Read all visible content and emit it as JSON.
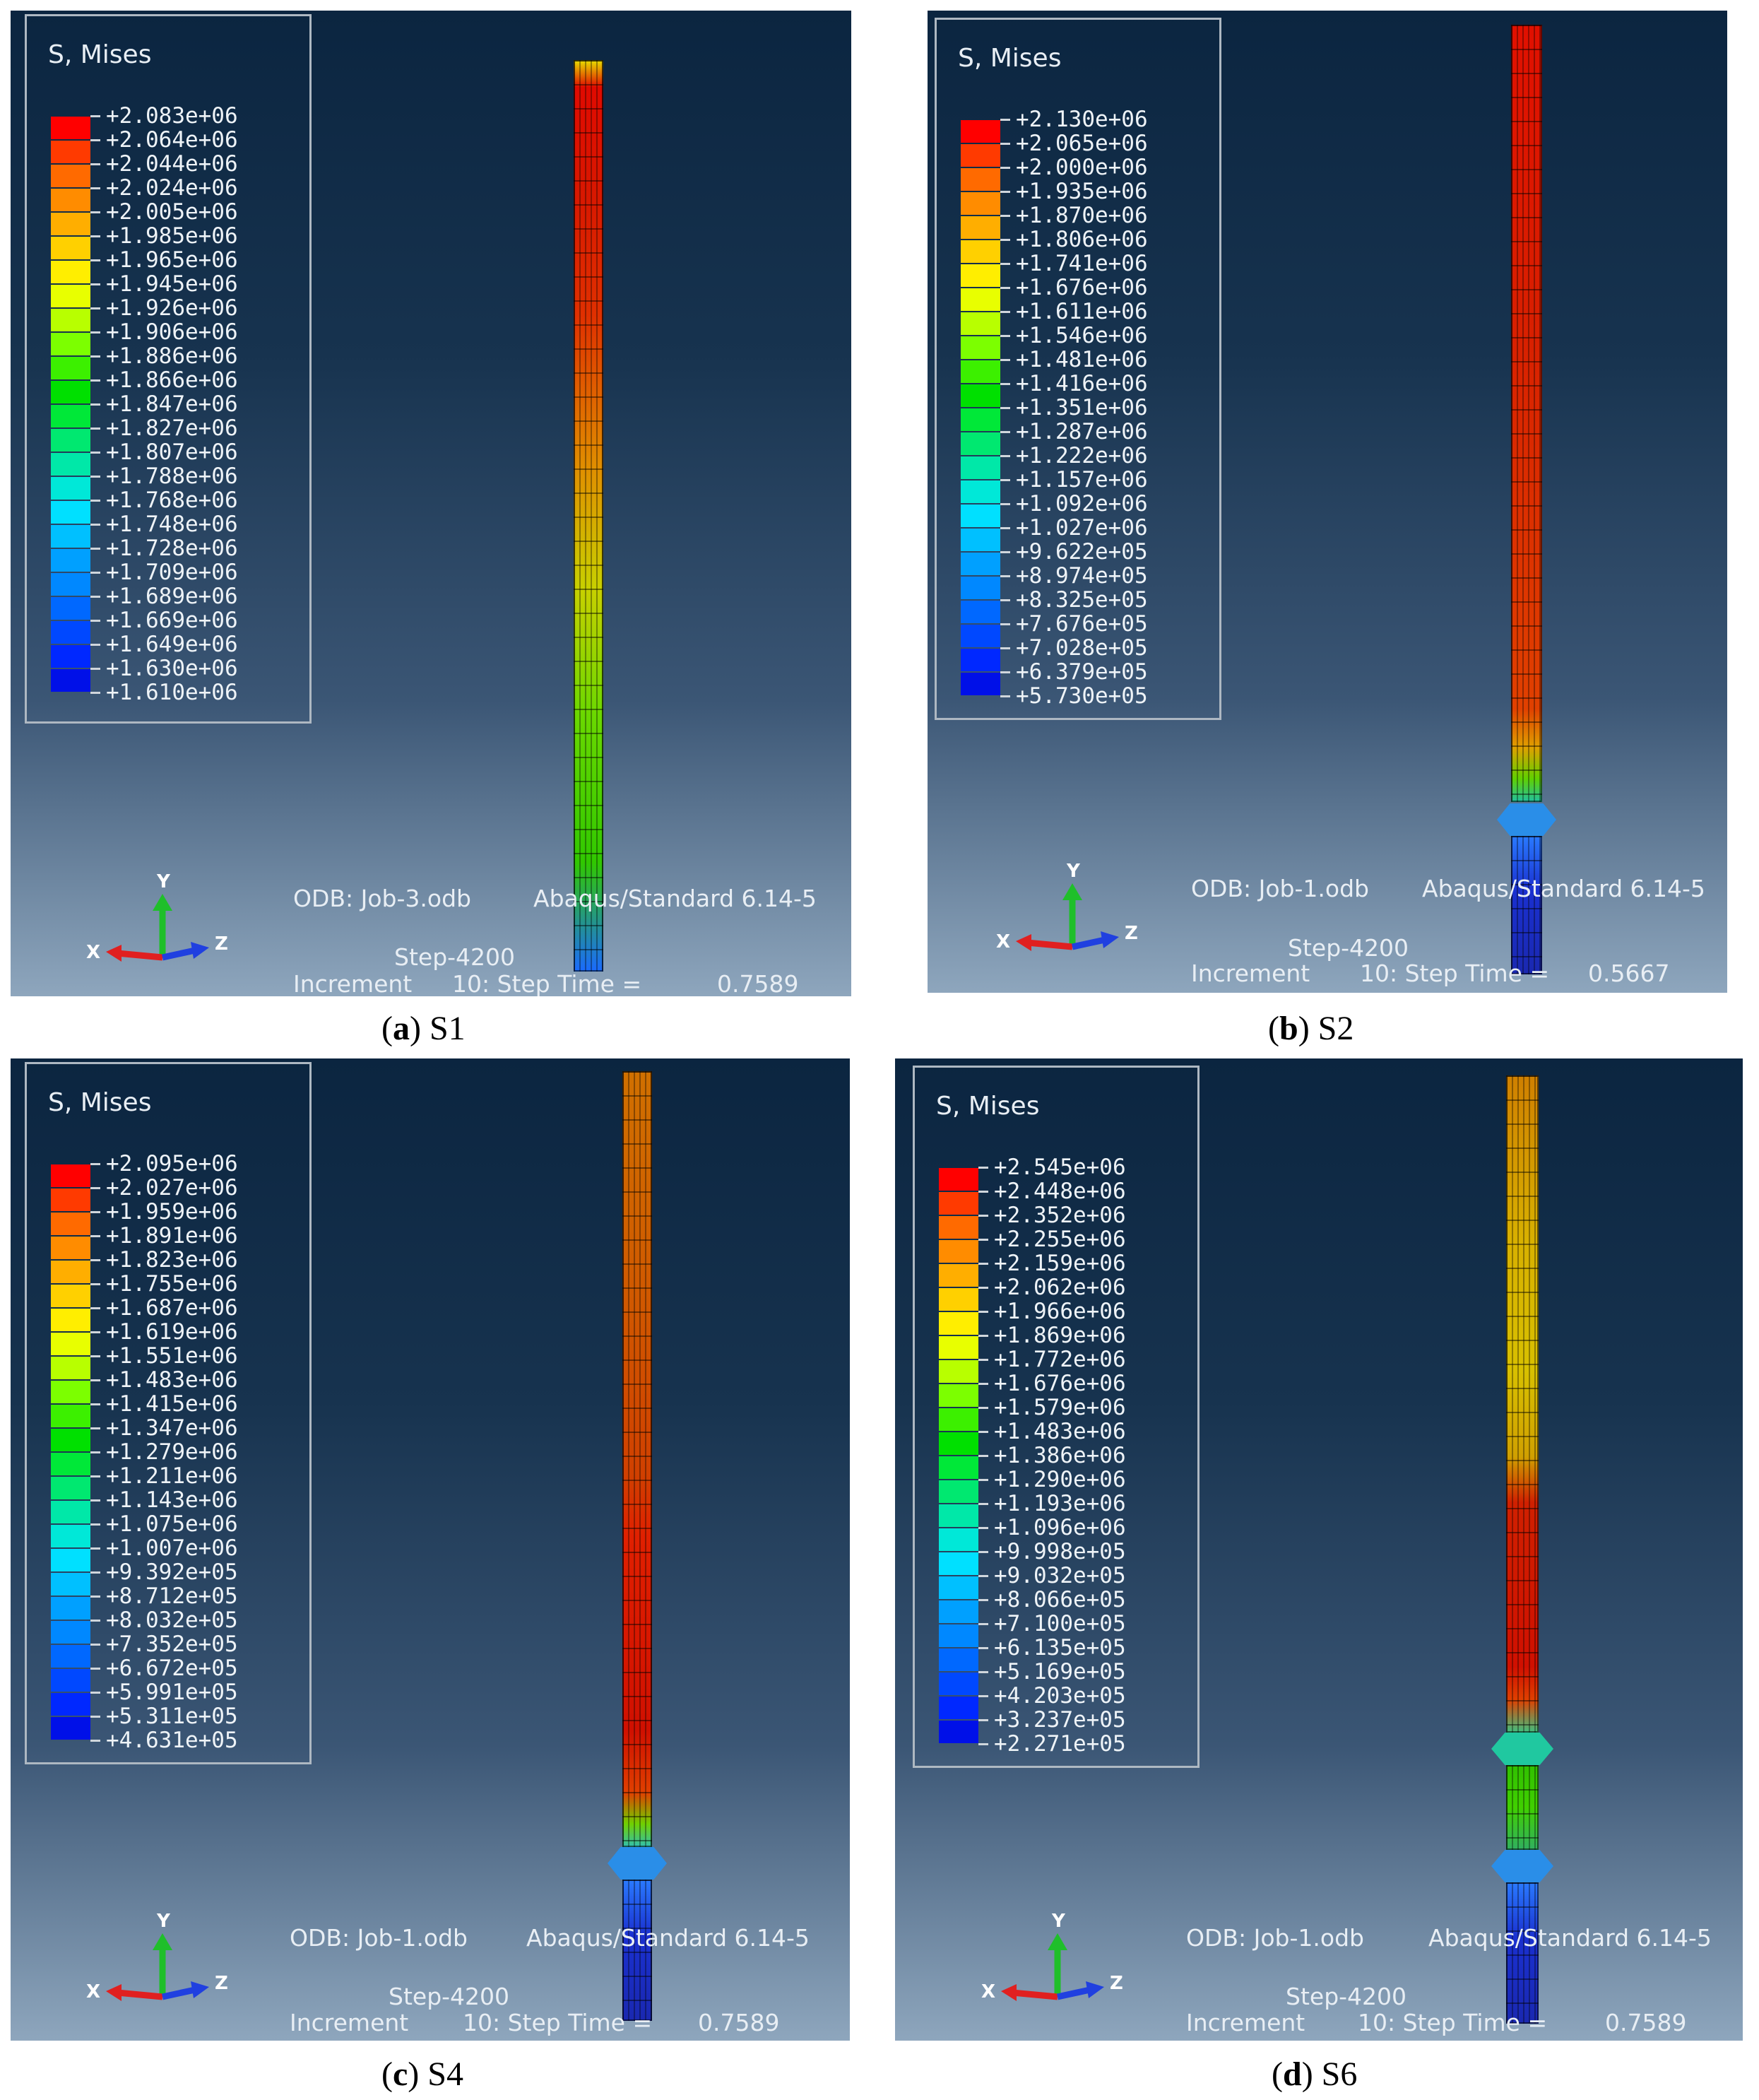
{
  "panels": [
    {
      "id": "a",
      "legend_title": "S, Mises",
      "levels": [
        "+2.083e+06",
        "+2.064e+06",
        "+2.044e+06",
        "+2.024e+06",
        "+2.005e+06",
        "+1.985e+06",
        "+1.965e+06",
        "+1.945e+06",
        "+1.926e+06",
        "+1.906e+06",
        "+1.886e+06",
        "+1.866e+06",
        "+1.847e+06",
        "+1.827e+06",
        "+1.807e+06",
        "+1.788e+06",
        "+1.768e+06",
        "+1.748e+06",
        "+1.728e+06",
        "+1.709e+06",
        "+1.689e+06",
        "+1.669e+06",
        "+1.649e+06",
        "+1.630e+06",
        "+1.610e+06"
      ],
      "odb": "ODB: Job-3.odb",
      "solver": "Abaqus/Standard 6.14-5",
      "step": "Step-4200",
      "increment": "Increment",
      "increment_detail": "10: Step Time =",
      "step_time": "0.7589",
      "caption_letter": "a",
      "caption_label": "S1"
    },
    {
      "id": "b",
      "legend_title": "S, Mises",
      "levels": [
        "+2.130e+06",
        "+2.065e+06",
        "+2.000e+06",
        "+1.935e+06",
        "+1.870e+06",
        "+1.806e+06",
        "+1.741e+06",
        "+1.676e+06",
        "+1.611e+06",
        "+1.546e+06",
        "+1.481e+06",
        "+1.416e+06",
        "+1.351e+06",
        "+1.287e+06",
        "+1.222e+06",
        "+1.157e+06",
        "+1.092e+06",
        "+1.027e+06",
        "+9.622e+05",
        "+8.974e+05",
        "+8.325e+05",
        "+7.676e+05",
        "+7.028e+05",
        "+6.379e+05",
        "+5.730e+05"
      ],
      "odb": "ODB: Job-1.odb",
      "solver": "Abaqus/Standard 6.14-5",
      "step": "Step-4200",
      "increment": "Increment",
      "increment_detail": "10: Step Time =",
      "step_time": "0.5667",
      "caption_letter": "b",
      "caption_label": "S2"
    },
    {
      "id": "c",
      "legend_title": "S, Mises",
      "levels": [
        "+2.095e+06",
        "+2.027e+06",
        "+1.959e+06",
        "+1.891e+06",
        "+1.823e+06",
        "+1.755e+06",
        "+1.687e+06",
        "+1.619e+06",
        "+1.551e+06",
        "+1.483e+06",
        "+1.415e+06",
        "+1.347e+06",
        "+1.279e+06",
        "+1.211e+06",
        "+1.143e+06",
        "+1.075e+06",
        "+1.007e+06",
        "+9.392e+05",
        "+8.712e+05",
        "+8.032e+05",
        "+7.352e+05",
        "+6.672e+05",
        "+5.991e+05",
        "+5.311e+05",
        "+4.631e+05"
      ],
      "odb": "ODB: Job-1.odb",
      "solver": "Abaqus/Standard 6.14-5",
      "step": "Step-4200",
      "increment": "Increment",
      "increment_detail": "10: Step Time =",
      "step_time": "0.7589",
      "caption_letter": "c",
      "caption_label": "S4"
    },
    {
      "id": "d",
      "legend_title": "S, Mises",
      "levels": [
        "+2.545e+06",
        "+2.448e+06",
        "+2.352e+06",
        "+2.255e+06",
        "+2.159e+06",
        "+2.062e+06",
        "+1.966e+06",
        "+1.869e+06",
        "+1.772e+06",
        "+1.676e+06",
        "+1.579e+06",
        "+1.483e+06",
        "+1.386e+06",
        "+1.290e+06",
        "+1.193e+06",
        "+1.096e+06",
        "+9.998e+05",
        "+9.032e+05",
        "+8.066e+05",
        "+7.100e+05",
        "+6.135e+05",
        "+5.169e+05",
        "+4.203e+05",
        "+3.237e+05",
        "+2.271e+05"
      ],
      "odb": "ODB: Job-1.odb",
      "solver": "Abaqus/Standard 6.14-5",
      "step": "Step-4200",
      "increment": "Increment",
      "increment_detail": "10: Step Time =",
      "step_time": "0.7589",
      "caption_letter": "d",
      "caption_label": "S6"
    }
  ],
  "axes": {
    "x": "X",
    "y": "Y",
    "z": "Z"
  },
  "contour_colors": [
    "#ff0000",
    "#ff3a00",
    "#ff6a00",
    "#ff8c00",
    "#ffae00",
    "#ffd000",
    "#ffee00",
    "#e8ff00",
    "#b8ff00",
    "#7cff00",
    "#3cf000",
    "#00e000",
    "#00e838",
    "#00e870",
    "#00e8a8",
    "#00e8d8",
    "#00e0ff",
    "#00c0ff",
    "#00a0ff",
    "#0088ff",
    "#0068ff",
    "#0048ff",
    "#0028ff",
    "#0010e8"
  ]
}
